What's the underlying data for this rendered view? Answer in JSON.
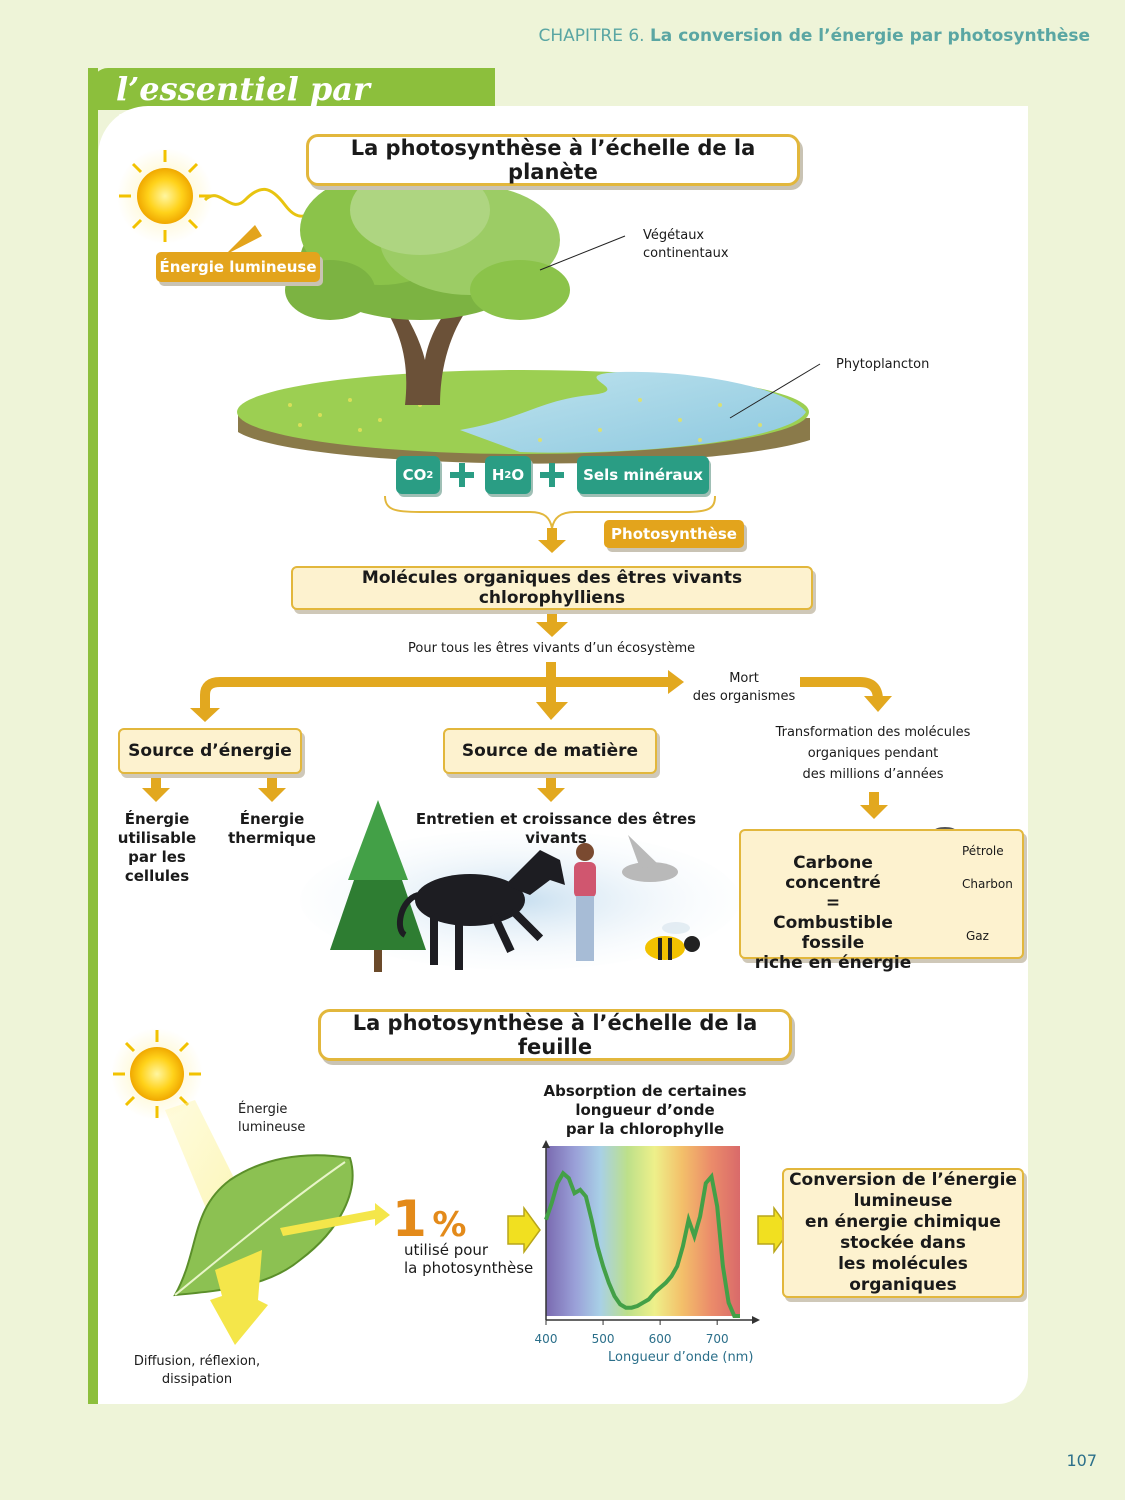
{
  "header": {
    "chapter": "CHAPITRE 6.",
    "title": "La conversion de l’énergie par photosynthèse"
  },
  "tab_title": "l’essentiel par l’image",
  "planet": {
    "title": "La photosynthèse à l’échelle de la planète",
    "energy_label": "Énergie lumineuse",
    "vegetaux_1": "Végétaux",
    "vegetaux_2": "continentaux",
    "phyto": "Phytoplancton",
    "co2": "CO",
    "co2_sub": "2",
    "h2o_a": "H",
    "h2o_sub": "2",
    "h2o_b": "O",
    "sels": "Sels minéraux",
    "photosynthese": "Photosynthèse",
    "molecules": "Molécules organiques des êtres vivants chlorophylliens",
    "pour_tous": "Pour tous les êtres vivants d’un écosystème",
    "mort_1": "Mort",
    "mort_2": "des organismes",
    "source_energie": "Source d’énergie",
    "source_matiere": "Source de matière",
    "transfo_1": "Transformation des molécules",
    "transfo_2": "organiques pendant",
    "transfo_3": "des millions d’années",
    "energie_util_1": "Énergie",
    "energie_util_2": "utilisable",
    "energie_util_3": "par les cellules",
    "energie_therm_1": "Énergie",
    "energie_therm_2": "thermique",
    "entretien": "Entretien et croissance des êtres vivants",
    "carbone_1": "Carbone concentré",
    "carbone_eq": "=",
    "carbone_2": "Combustible fossile",
    "carbone_3": "riche en énergie",
    "petrole": "Pétrole",
    "charbon": "Charbon",
    "gaz": "Gaz"
  },
  "leaf": {
    "title": "La photosynthèse à l’échelle de la feuille",
    "energie_1": "Énergie",
    "energie_2": "lumineuse",
    "pct_num": "1",
    "pct_sign": "%",
    "utilise_1": "utilisé pour",
    "utilise_2": "la photosynthèse",
    "diffusion_1": "Diffusion, réflexion,",
    "diffusion_2": "dissipation",
    "conversion_1": "Conversion de l’énergie",
    "conversion_2": "lumineuse",
    "conversion_3": "en énergie chimique",
    "conversion_4": "stockée dans",
    "conversion_5": "les molécules organiques"
  },
  "chart_data": {
    "type": "line",
    "title": "Absorption de certaines longueur d’onde par la chlorophylle",
    "title_lines": [
      "Absorption de certaines",
      "longueur d’onde",
      "par la chlorophylle"
    ],
    "xlabel": "Longueur d’onde (nm)",
    "ylabel": "",
    "xlim": [
      400,
      740
    ],
    "ylim": [
      0,
      1
    ],
    "x_ticks": [
      "400",
      "500",
      "600",
      "700"
    ],
    "x": [
      400,
      410,
      420,
      430,
      440,
      450,
      460,
      470,
      480,
      490,
      500,
      510,
      520,
      530,
      540,
      550,
      560,
      570,
      580,
      590,
      600,
      610,
      620,
      630,
      640,
      650,
      660,
      670,
      680,
      690,
      700,
      710,
      720,
      730,
      740
    ],
    "y": [
      0.58,
      0.68,
      0.8,
      0.86,
      0.83,
      0.74,
      0.76,
      0.72,
      0.58,
      0.42,
      0.3,
      0.2,
      0.12,
      0.07,
      0.05,
      0.05,
      0.06,
      0.08,
      0.1,
      0.14,
      0.17,
      0.2,
      0.24,
      0.3,
      0.42,
      0.58,
      0.48,
      0.6,
      0.8,
      0.84,
      0.66,
      0.3,
      0.08,
      0.0,
      0.0
    ]
  },
  "page_number": "107"
}
